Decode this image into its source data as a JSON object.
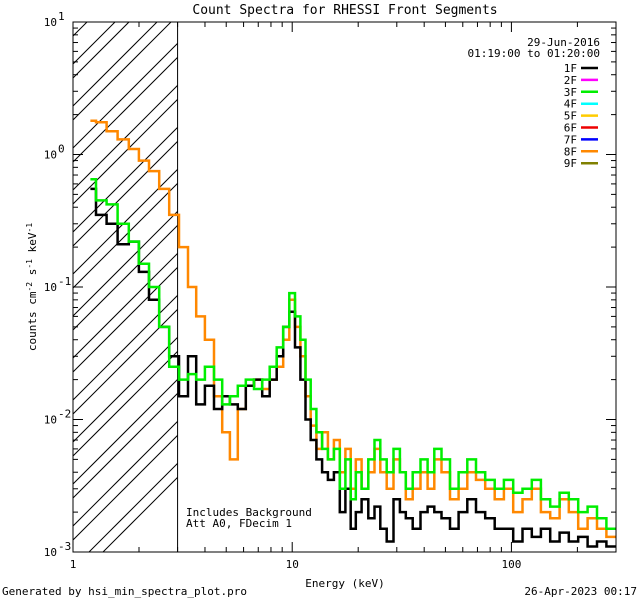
{
  "chart_data": {
    "type": "line",
    "title": "Count Spectra for RHESSI Front Segments",
    "xlabel": "Energy (keV)",
    "ylabel_parts": [
      "counts cm",
      "-2",
      " s",
      "-1",
      " keV",
      "-1"
    ],
    "xscale": "log",
    "yscale": "log",
    "xlim": [
      1,
      300
    ],
    "ylim": [
      0.001,
      10
    ],
    "x_tick_labels": [
      {
        "value": 1,
        "label": "1"
      },
      {
        "value": 10,
        "label": "10"
      },
      {
        "value": 100,
        "label": "100"
      }
    ],
    "y_tick_labels": [
      {
        "value": 10,
        "base": "10",
        "exp": "1"
      },
      {
        "value": 1,
        "base": "10",
        "exp": "0"
      },
      {
        "value": 0.1,
        "base": "10",
        "exp": "-1"
      },
      {
        "value": 0.01,
        "base": "10",
        "exp": "-2"
      },
      {
        "value": 0.001,
        "base": "10",
        "exp": "-3"
      }
    ],
    "hatched_region_keV": [
      1,
      3
    ],
    "date": "29-Jun-2016",
    "time_range": "01:19:00 to 01:20:00",
    "annotations": [
      "Includes Background",
      "Att A0, FDecim 1"
    ],
    "legend": [
      {
        "name": "1F",
        "color": "#000000"
      },
      {
        "name": "2F",
        "color": "#ff00ff"
      },
      {
        "name": "3F",
        "color": "#00ee00"
      },
      {
        "name": "4F",
        "color": "#00ffff"
      },
      {
        "name": "5F",
        "color": "#ffcc00"
      },
      {
        "name": "6F",
        "color": "#ee0000"
      },
      {
        "name": "7F",
        "color": "#0000ff"
      },
      {
        "name": "8F",
        "color": "#ff8800"
      },
      {
        "name": "9F",
        "color": "#808000"
      }
    ],
    "series": [
      {
        "name": "8F",
        "color": "#ff8800",
        "width": 2.5,
        "x": [
          1.2,
          1.35,
          1.5,
          1.7,
          1.9,
          2.1,
          2.35,
          2.6,
          2.9,
          3.2,
          3.5,
          3.8,
          4.2,
          4.6,
          5.0,
          5.4,
          5.9,
          6.4,
          7.0,
          7.6,
          8.2,
          8.8,
          9.4,
          10.0,
          10.6,
          11.2,
          11.8,
          12.5,
          13.3,
          14.1,
          15.0,
          16.0,
          17.0,
          18.0,
          19.0,
          20.0,
          21.5,
          23.0,
          24.5,
          26.0,
          28.0,
          30.0,
          32.0,
          34.0,
          37.0,
          40.0,
          43.0,
          46.0,
          50.0,
          55.0,
          60.0,
          66.0,
          72.0,
          80.0,
          88.0,
          97.0,
          107.0,
          118.0,
          130.0,
          143.0,
          158.0,
          174.0,
          192.0,
          212.0,
          234.0,
          258.0,
          285.0
        ],
        "y": [
          1.8,
          1.75,
          1.5,
          1.3,
          1.1,
          0.9,
          0.75,
          0.55,
          0.35,
          0.2,
          0.1,
          0.06,
          0.04,
          0.015,
          0.008,
          0.005,
          0.012,
          0.018,
          0.02,
          0.017,
          0.02,
          0.025,
          0.04,
          0.08,
          0.05,
          0.03,
          0.015,
          0.009,
          0.006,
          0.008,
          0.005,
          0.007,
          0.004,
          0.006,
          0.003,
          0.005,
          0.003,
          0.004,
          0.006,
          0.004,
          0.003,
          0.005,
          0.004,
          0.0025,
          0.003,
          0.004,
          0.003,
          0.005,
          0.004,
          0.0025,
          0.003,
          0.004,
          0.0035,
          0.003,
          0.0025,
          0.003,
          0.002,
          0.0025,
          0.003,
          0.002,
          0.0018,
          0.0025,
          0.002,
          0.0015,
          0.0018,
          0.0015,
          0.0013
        ]
      },
      {
        "name": "1F",
        "color": "#000000",
        "width": 2.5,
        "x": [
          1.2,
          1.35,
          1.5,
          1.7,
          1.9,
          2.1,
          2.35,
          2.6,
          2.9,
          3.2,
          3.5,
          3.8,
          4.2,
          4.6,
          5.0,
          5.4,
          5.9,
          6.4,
          7.0,
          7.6,
          8.2,
          8.8,
          9.4,
          10.0,
          10.6,
          11.2,
          11.8,
          12.5,
          13.3,
          14.1,
          15.0,
          16.0,
          17.0,
          18.0,
          19.0,
          20.0,
          21.5,
          23.0,
          24.5,
          26.0,
          28.0,
          30.0,
          32.0,
          34.0,
          37.0,
          40.0,
          43.0,
          46.0,
          50.0,
          55.0,
          60.0,
          66.0,
          72.0,
          80.0,
          88.0,
          97.0,
          107.0,
          118.0,
          130.0,
          143.0,
          158.0,
          174.0,
          192.0,
          212.0,
          234.0,
          258.0,
          285.0
        ],
        "y": [
          0.55,
          0.35,
          0.3,
          0.21,
          0.22,
          0.13,
          0.08,
          0.05,
          0.03,
          0.015,
          0.03,
          0.013,
          0.018,
          0.012,
          0.015,
          0.013,
          0.012,
          0.018,
          0.02,
          0.015,
          0.02,
          0.03,
          0.05,
          0.065,
          0.035,
          0.02,
          0.01,
          0.007,
          0.005,
          0.004,
          0.0035,
          0.004,
          0.002,
          0.003,
          0.0015,
          0.002,
          0.0025,
          0.0018,
          0.0022,
          0.0015,
          0.0012,
          0.0025,
          0.002,
          0.0018,
          0.0015,
          0.002,
          0.0022,
          0.002,
          0.0018,
          0.0015,
          0.002,
          0.0025,
          0.002,
          0.0018,
          0.0015,
          0.0015,
          0.0012,
          0.0015,
          0.0013,
          0.0015,
          0.0012,
          0.0014,
          0.0012,
          0.0013,
          0.0011,
          0.0012,
          0.0011
        ]
      },
      {
        "name": "3F",
        "color": "#00ee00",
        "width": 2.5,
        "x": [
          1.2,
          1.35,
          1.5,
          1.7,
          1.9,
          2.1,
          2.35,
          2.6,
          2.9,
          3.2,
          3.5,
          3.8,
          4.2,
          4.6,
          5.0,
          5.4,
          5.9,
          6.4,
          7.0,
          7.6,
          8.2,
          8.8,
          9.4,
          10.0,
          10.6,
          11.2,
          11.8,
          12.5,
          13.3,
          14.1,
          15.0,
          16.0,
          17.0,
          18.0,
          19.0,
          20.0,
          21.5,
          23.0,
          24.5,
          26.0,
          28.0,
          30.0,
          32.0,
          34.0,
          37.0,
          40.0,
          43.0,
          46.0,
          50.0,
          55.0,
          60.0,
          66.0,
          72.0,
          80.0,
          88.0,
          97.0,
          107.0,
          118.0,
          130.0,
          143.0,
          158.0,
          174.0,
          192.0,
          212.0,
          234.0,
          258.0,
          285.0
        ],
        "y": [
          0.65,
          0.45,
          0.42,
          0.3,
          0.22,
          0.15,
          0.1,
          0.05,
          0.025,
          0.02,
          0.022,
          0.02,
          0.025,
          0.02,
          0.013,
          0.015,
          0.018,
          0.02,
          0.017,
          0.02,
          0.025,
          0.035,
          0.05,
          0.09,
          0.06,
          0.04,
          0.02,
          0.012,
          0.008,
          0.006,
          0.005,
          0.006,
          0.003,
          0.005,
          0.0025,
          0.004,
          0.003,
          0.005,
          0.007,
          0.005,
          0.004,
          0.006,
          0.004,
          0.003,
          0.004,
          0.005,
          0.004,
          0.006,
          0.005,
          0.003,
          0.004,
          0.005,
          0.004,
          0.0035,
          0.003,
          0.0035,
          0.0028,
          0.003,
          0.0035,
          0.0025,
          0.0022,
          0.0028,
          0.0025,
          0.002,
          0.0022,
          0.0018,
          0.0015
        ]
      }
    ]
  },
  "footer": {
    "left": "Generated by hsi_min_spectra_plot.pro",
    "right": "26-Apr-2023 00:17"
  }
}
